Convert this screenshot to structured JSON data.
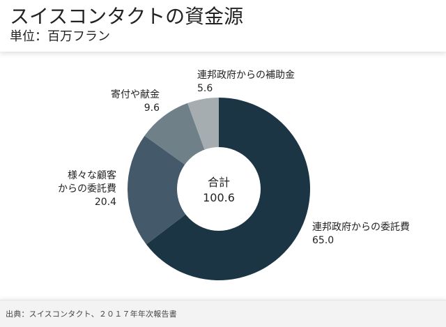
{
  "header": {
    "title": "スイスコンタクトの資金源",
    "subtitle": "単位：百万フラン"
  },
  "footer": {
    "source": "出典：スイスコンタクト、２０１７年年次報告書"
  },
  "chart_data": {
    "type": "pie",
    "donut": true,
    "center_label": "合計",
    "center_value": "100.6",
    "slices": [
      {
        "label": [
          "連邦政府からの委託費"
        ],
        "value": 65.0,
        "value_text": "65.0",
        "color": "#1b3544"
      },
      {
        "label": [
          "様々な顧客",
          "からの委託費"
        ],
        "value": 20.4,
        "value_text": "20.4",
        "color": "#44596a"
      },
      {
        "label": [
          "寄付や献金"
        ],
        "value": 9.6,
        "value_text": "9.6",
        "color": "#6f8089"
      },
      {
        "label": [
          "連邦政府からの補助金"
        ],
        "value": 5.6,
        "value_text": "5.6",
        "color": "#a5adb1"
      }
    ]
  }
}
